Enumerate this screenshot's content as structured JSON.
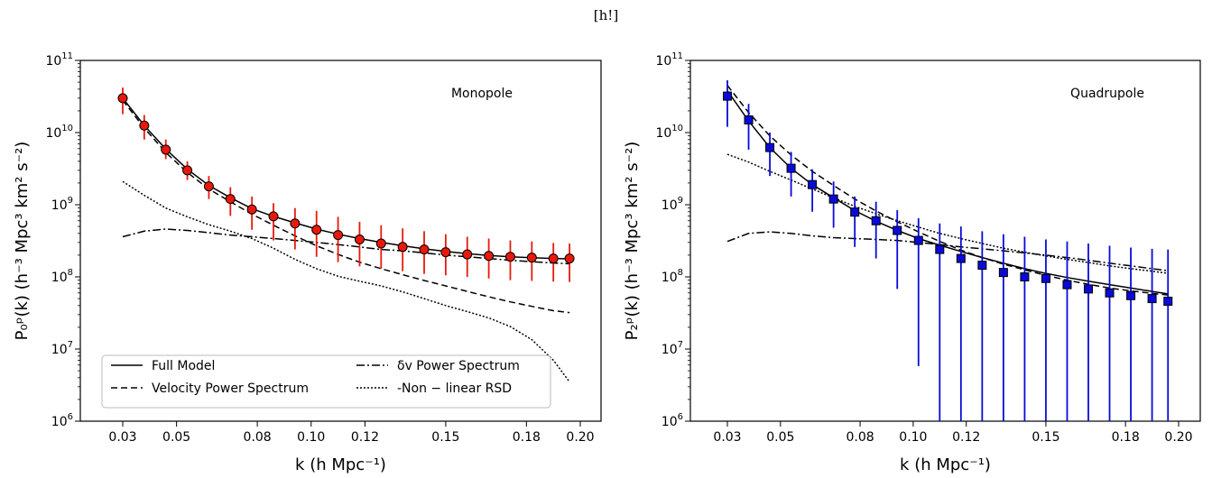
{
  "header": "[h!]",
  "styles": {
    "Full Model": {
      "dash": ""
    },
    "Velocity Power Spectrum": {
      "dash": "7,4"
    },
    "δv Power Spectrum": {
      "dash": "9,3,2,3"
    },
    "-Non − linear RSD": {
      "dash": "2,2"
    }
  },
  "chart_data": [
    {
      "type": "line",
      "annotation": "Monopole",
      "xlabel": "k (h Mpc⁻¹)",
      "ylabel": "P₀ᵖ(k) (h⁻³ Mpc³ km² s⁻²)",
      "xlim": [
        0.02,
        0.208
      ],
      "ylim": [
        1000000.0,
        100000000000.0
      ],
      "yscale": "log",
      "xticks": [
        0.03,
        0.05,
        0.08,
        0.1,
        0.12,
        0.15,
        0.18,
        0.2
      ],
      "xtick_labels": [
        "0.03",
        "0.05",
        "0.08",
        "0.10",
        "0.12",
        "0.15",
        "0.18",
        "0.20"
      ],
      "ytick_exponents": [
        6,
        7,
        8,
        9,
        10,
        11
      ],
      "legend": {
        "placement": "lower-left",
        "entries": [
          "Full Model",
          "Velocity Power Spectrum",
          "δv Power Spectrum",
          "-Non − linear RSD"
        ]
      },
      "marker_color": "#e8190c",
      "marker_shape": "circle",
      "series": [
        {
          "name": "Full Model",
          "x": [
            0.03,
            0.038,
            0.046,
            0.054,
            0.062,
            0.07,
            0.078,
            0.086,
            0.094,
            0.102,
            0.11,
            0.118,
            0.126,
            0.134,
            0.142,
            0.15,
            0.158,
            0.166,
            0.174,
            0.182,
            0.19,
            0.196
          ],
          "y": [
            30000000000.0,
            12500000000.0,
            5900000000.0,
            3100000000.0,
            1850000000.0,
            1250000000.0,
            880000000.0,
            690000000.0,
            560000000.0,
            460000000.0,
            390000000.0,
            340000000.0,
            300000000.0,
            270000000.0,
            245000000.0,
            225000000.0,
            210000000.0,
            198000000.0,
            190000000.0,
            184000000.0,
            180000000.0,
            178000000.0
          ]
        },
        {
          "name": "Velocity Power Spectrum",
          "x": [
            0.03,
            0.038,
            0.046,
            0.054,
            0.062,
            0.07,
            0.078,
            0.086,
            0.094,
            0.102,
            0.11,
            0.118,
            0.126,
            0.134,
            0.142,
            0.15,
            0.158,
            0.166,
            0.174,
            0.182,
            0.19,
            0.196
          ],
          "y": [
            28000000000.0,
            11500000000.0,
            5300000000.0,
            2800000000.0,
            1650000000.0,
            1100000000.0,
            740000000.0,
            520000000.0,
            370000000.0,
            270000000.0,
            205000000.0,
            160000000.0,
            130000000.0,
            107000000.0,
            89000000.0,
            75000000.0,
            63000000.0,
            53000000.0,
            45000000.0,
            39000000.0,
            34000000.0,
            32000000.0
          ]
        },
        {
          "name": "δv Power Spectrum",
          "x": [
            0.03,
            0.038,
            0.046,
            0.054,
            0.062,
            0.07,
            0.078,
            0.086,
            0.094,
            0.102,
            0.11,
            0.118,
            0.126,
            0.134,
            0.142,
            0.15,
            0.158,
            0.166,
            0.174,
            0.182,
            0.19,
            0.196
          ],
          "y": [
            360000000.0,
            430000000.0,
            460000000.0,
            440000000.0,
            410000000.0,
            380000000.0,
            360000000.0,
            340000000.0,
            320000000.0,
            300000000.0,
            280000000.0,
            260000000.0,
            240000000.0,
            230000000.0,
            215000000.0,
            200000000.0,
            190000000.0,
            180000000.0,
            170000000.0,
            162000000.0,
            156000000.0,
            152000000.0
          ]
        },
        {
          "name": "-Non − linear RSD",
          "x": [
            0.03,
            0.038,
            0.046,
            0.054,
            0.062,
            0.07,
            0.078,
            0.086,
            0.094,
            0.102,
            0.11,
            0.118,
            0.126,
            0.134,
            0.142,
            0.15,
            0.158,
            0.166,
            0.174,
            0.182,
            0.19,
            0.196
          ],
          "y": [
            2100000000.0,
            1350000000.0,
            900000000.0,
            680000000.0,
            530000000.0,
            430000000.0,
            340000000.0,
            250000000.0,
            175000000.0,
            130000000.0,
            102000000.0,
            87000000.0,
            75000000.0,
            62000000.0,
            50000000.0,
            40000000.0,
            33000000.0,
            27000000.0,
            20500000.0,
            13500000.0,
            7000000.0,
            3500000.0
          ]
        }
      ],
      "points": {
        "x": [
          0.03,
          0.038,
          0.046,
          0.054,
          0.062,
          0.07,
          0.078,
          0.086,
          0.094,
          0.102,
          0.11,
          0.118,
          0.126,
          0.134,
          0.142,
          0.15,
          0.158,
          0.166,
          0.174,
          0.182,
          0.19,
          0.196
        ],
        "y": [
          30000000000.0,
          12500000000.0,
          5800000000.0,
          3000000000.0,
          1800000000.0,
          1200000000.0,
          860000000.0,
          690000000.0,
          550000000.0,
          450000000.0,
          380000000.0,
          330000000.0,
          290000000.0,
          260000000.0,
          240000000.0,
          220000000.0,
          205000000.0,
          195000000.0,
          190000000.0,
          185000000.0,
          180000000.0,
          180000000.0
        ],
        "err_lo": [
          18000000000.0,
          8000000000.0,
          4300000000.0,
          2200000000.0,
          1200000000.0,
          700000000.0,
          450000000.0,
          320000000.0,
          240000000.0,
          190000000.0,
          160000000.0,
          140000000.0,
          130000000.0,
          120000000.0,
          110000000.0,
          105000000.0,
          100000000.0,
          95000000.0,
          90000000.0,
          88000000.0,
          86000000.0,
          85000000.0
        ],
        "err_hi": [
          42000000000.0,
          17500000000.0,
          8000000000.0,
          4000000000.0,
          2500000000.0,
          1750000000.0,
          1300000000.0,
          1050000000.0,
          900000000.0,
          820000000.0,
          680000000.0,
          580000000.0,
          520000000.0,
          470000000.0,
          430000000.0,
          390000000.0,
          360000000.0,
          340000000.0,
          320000000.0,
          310000000.0,
          295000000.0,
          290000000.0
        ]
      }
    },
    {
      "type": "line",
      "annotation": "Quadrupole",
      "xlabel": "k (h Mpc⁻¹)",
      "ylabel": "P₂ᵖ(k) (h⁻³ Mpc³ km² s⁻²)",
      "xlim": [
        0.02,
        0.208
      ],
      "ylim": [
        1000000.0,
        100000000000.0
      ],
      "yscale": "log",
      "xticks": [
        0.03,
        0.05,
        0.08,
        0.1,
        0.12,
        0.15,
        0.18,
        0.2
      ],
      "xtick_labels": [
        "0.03",
        "0.05",
        "0.08",
        "0.10",
        "0.12",
        "0.15",
        "0.18",
        "0.20"
      ],
      "ytick_exponents": [
        6,
        7,
        8,
        9,
        10,
        11
      ],
      "marker_color": "#0a0ad8",
      "marker_shape": "square",
      "series": [
        {
          "name": "Full Model",
          "x": [
            0.03,
            0.038,
            0.046,
            0.054,
            0.062,
            0.07,
            0.078,
            0.086,
            0.094,
            0.102,
            0.11,
            0.118,
            0.126,
            0.134,
            0.142,
            0.15,
            0.158,
            0.166,
            0.174,
            0.182,
            0.19,
            0.196
          ],
          "y": [
            38000000000.0,
            14500000000.0,
            6200000000.0,
            3200000000.0,
            1900000000.0,
            1250000000.0,
            830000000.0,
            590000000.0,
            440000000.0,
            340000000.0,
            275000000.0,
            225000000.0,
            185000000.0,
            155000000.0,
            130000000.0,
            112000000.0,
            98000000.0,
            87000000.0,
            78000000.0,
            70000000.0,
            63000000.0,
            58000000.0
          ]
        },
        {
          "name": "Velocity Power Spectrum",
          "x": [
            0.03,
            0.038,
            0.046,
            0.054,
            0.062,
            0.07,
            0.078,
            0.086,
            0.094,
            0.102,
            0.11,
            0.118,
            0.126,
            0.134,
            0.142,
            0.15,
            0.158,
            0.166,
            0.174,
            0.182,
            0.19,
            0.196
          ],
          "y": [
            45000000000.0,
            19000000000.0,
            9000000000.0,
            4900000000.0,
            2900000000.0,
            1850000000.0,
            1200000000.0,
            820000000.0,
            580000000.0,
            420000000.0,
            310000000.0,
            235000000.0,
            185000000.0,
            150000000.0,
            125000000.0,
            105000000.0,
            90000000.0,
            79000000.0,
            70000000.0,
            64000000.0,
            59000000.0,
            56000000.0
          ]
        },
        {
          "name": "δv Power Spectrum",
          "x": [
            0.03,
            0.038,
            0.046,
            0.054,
            0.062,
            0.07,
            0.078,
            0.086,
            0.094,
            0.102,
            0.11,
            0.118,
            0.126,
            0.134,
            0.142,
            0.15,
            0.158,
            0.166,
            0.174,
            0.182,
            0.19,
            0.196
          ],
          "y": [
            310000000.0,
            400000000.0,
            420000000.0,
            400000000.0,
            370000000.0,
            350000000.0,
            340000000.0,
            330000000.0,
            320000000.0,
            300000000.0,
            280000000.0,
            260000000.0,
            245000000.0,
            230000000.0,
            215000000.0,
            200000000.0,
            185000000.0,
            170000000.0,
            155000000.0,
            142000000.0,
            130000000.0,
            122000000.0
          ]
        },
        {
          "name": "-Non − linear RSD",
          "x": [
            0.03,
            0.038,
            0.046,
            0.054,
            0.062,
            0.07,
            0.078,
            0.086,
            0.094,
            0.102,
            0.11,
            0.118,
            0.126,
            0.134,
            0.142,
            0.15,
            0.158,
            0.166,
            0.174,
            0.182,
            0.19,
            0.196
          ],
          "y": [
            5000000000.0,
            3900000000.0,
            2900000000.0,
            2200000000.0,
            1650000000.0,
            1250000000.0,
            950000000.0,
            750000000.0,
            600000000.0,
            490000000.0,
            400000000.0,
            340000000.0,
            290000000.0,
            250000000.0,
            220000000.0,
            195000000.0,
            175000000.0,
            158000000.0,
            142000000.0,
            130000000.0,
            120000000.0,
            112000000.0
          ]
        }
      ],
      "points": {
        "x": [
          0.03,
          0.038,
          0.046,
          0.054,
          0.062,
          0.07,
          0.078,
          0.086,
          0.094,
          0.102,
          0.11,
          0.118,
          0.126,
          0.134,
          0.142,
          0.15,
          0.158,
          0.166,
          0.174,
          0.182,
          0.19,
          0.196
        ],
        "y": [
          32000000000.0,
          15000000000.0,
          6200000000.0,
          3200000000.0,
          1900000000.0,
          1200000000.0,
          790000000.0,
          600000000.0,
          440000000.0,
          320000000.0,
          240000000.0,
          180000000.0,
          145000000.0,
          115000000.0,
          100000000.0,
          95000000.0,
          78000000.0,
          68000000.0,
          60000000.0,
          55000000.0,
          50000000.0,
          46000000.0
        ],
        "err_lo": [
          12000000000.0,
          5800000000.0,
          2500000000.0,
          1300000000.0,
          800000000.0,
          480000000.0,
          260000000.0,
          180000000.0,
          68000000.0,
          5800000.0,
          1000000.0,
          1000000.0,
          1000000.0,
          1000000.0,
          1000000.0,
          1000000.0,
          1000000.0,
          1000000.0,
          1000000.0,
          1000000.0,
          1000000.0,
          1000000.0
        ],
        "err_hi": [
          53000000000.0,
          25000000000.0,
          10000000000.0,
          5400000000.0,
          3100000000.0,
          2100000000.0,
          1300000000.0,
          1100000000.0,
          840000000.0,
          650000000.0,
          550000000.0,
          500000000.0,
          430000000.0,
          390000000.0,
          360000000.0,
          330000000.0,
          310000000.0,
          290000000.0,
          270000000.0,
          255000000.0,
          245000000.0,
          240000000.0
        ]
      }
    }
  ]
}
